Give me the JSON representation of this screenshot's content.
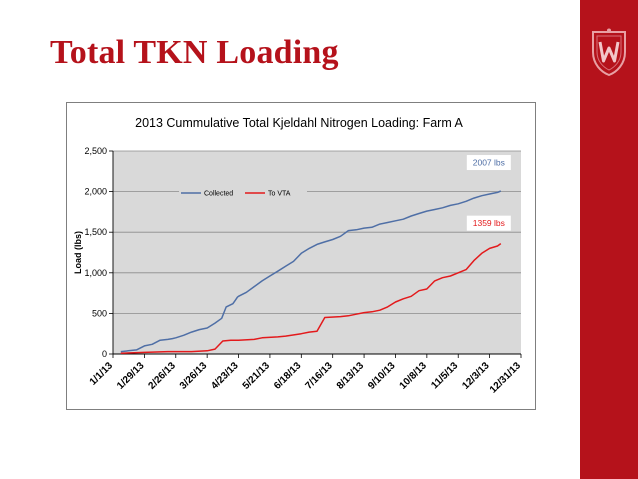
{
  "slide": {
    "title": "Total TKN Loading"
  },
  "colors": {
    "title": "#b5121b",
    "brand_bar": "#b5121b",
    "plot_background": "#d9d9d9",
    "collected": "#4f6fa6",
    "to_vta": "#e31a1c"
  },
  "icons": {
    "crest": "university-crest-icon"
  },
  "chart_data": {
    "type": "line",
    "title": "2013 Cummulative Total Kjeldahl Nitrogen Loading: Farm A",
    "ylabel": "Load (lbs)",
    "xlabel": "",
    "ylim": [
      0,
      2500
    ],
    "yticks": [
      0,
      500,
      1000,
      1500,
      2000,
      2500
    ],
    "ytick_labels": [
      "0",
      "500",
      "1,000",
      "1,500",
      "2,000",
      "2,500"
    ],
    "xlim": [
      "2013-01-01",
      "2013-12-31"
    ],
    "xticks": [
      "2013-01-01",
      "2013-01-29",
      "2013-02-26",
      "2013-03-26",
      "2013-04-23",
      "2013-05-21",
      "2013-06-18",
      "2013-07-16",
      "2013-08-13",
      "2013-09-10",
      "2013-10-08",
      "2013-11-05",
      "2013-12-03",
      "2013-12-31"
    ],
    "xtick_labels": [
      "1/1/13",
      "1/29/13",
      "2/26/13",
      "3/26/13",
      "4/23/13",
      "5/21/13",
      "6/18/13",
      "7/16/13",
      "8/13/13",
      "9/10/13",
      "10/8/13",
      "11/5/13",
      "12/3/13",
      "12/31/13"
    ],
    "grid": true,
    "legend": "upper-left inside plot",
    "series": [
      {
        "name": "Collected",
        "color": "#4f6fa6",
        "x": [
          "2013-01-08",
          "2013-01-22",
          "2013-01-29",
          "2013-02-05",
          "2013-02-12",
          "2013-02-19",
          "2013-02-23",
          "2013-02-26",
          "2013-03-05",
          "2013-03-12",
          "2013-03-19",
          "2013-03-26",
          "2013-04-02",
          "2013-04-08",
          "2013-04-12",
          "2013-04-18",
          "2013-04-20",
          "2013-04-21",
          "2013-04-22",
          "2013-04-23",
          "2013-04-30",
          "2013-05-07",
          "2013-05-14",
          "2013-05-21",
          "2013-05-28",
          "2013-06-04",
          "2013-06-11",
          "2013-06-18",
          "2013-06-25",
          "2013-07-02",
          "2013-07-09",
          "2013-07-16",
          "2013-07-23",
          "2013-07-30",
          "2013-08-06",
          "2013-08-13",
          "2013-08-20",
          "2013-08-27",
          "2013-09-03",
          "2013-09-10",
          "2013-09-17",
          "2013-09-24",
          "2013-10-01",
          "2013-10-08",
          "2013-10-15",
          "2013-10-22",
          "2013-10-29",
          "2013-11-05",
          "2013-11-12",
          "2013-11-19",
          "2013-11-26",
          "2013-12-03",
          "2013-12-10",
          "2013-12-13"
        ],
        "values": [
          30,
          50,
          100,
          120,
          170,
          180,
          190,
          200,
          230,
          270,
          300,
          320,
          380,
          440,
          580,
          620,
          660,
          680,
          700,
          710,
          760,
          830,
          900,
          960,
          1020,
          1080,
          1140,
          1240,
          1300,
          1350,
          1380,
          1410,
          1450,
          1520,
          1530,
          1550,
          1560,
          1600,
          1620,
          1640,
          1660,
          1700,
          1730,
          1760,
          1780,
          1800,
          1830,
          1850,
          1880,
          1920,
          1950,
          1970,
          1990,
          2007
        ]
      },
      {
        "name": "To VTA",
        "color": "#e31a1c",
        "x": [
          "2013-01-08",
          "2013-01-29",
          "2013-02-19",
          "2013-03-12",
          "2013-03-26",
          "2013-04-02",
          "2013-04-09",
          "2013-04-16",
          "2013-04-23",
          "2013-05-07",
          "2013-05-14",
          "2013-05-28",
          "2013-06-04",
          "2013-06-18",
          "2013-06-25",
          "2013-07-02",
          "2013-07-09",
          "2013-07-23",
          "2013-07-30",
          "2013-08-06",
          "2013-08-13",
          "2013-08-20",
          "2013-08-27",
          "2013-09-03",
          "2013-09-10",
          "2013-09-17",
          "2013-09-24",
          "2013-10-01",
          "2013-10-08",
          "2013-10-15",
          "2013-10-22",
          "2013-10-29",
          "2013-11-05",
          "2013-11-12",
          "2013-11-19",
          "2013-11-26",
          "2013-12-03",
          "2013-12-10",
          "2013-12-13"
        ],
        "values": [
          10,
          20,
          30,
          30,
          40,
          60,
          160,
          170,
          170,
          180,
          200,
          210,
          220,
          250,
          270,
          280,
          450,
          460,
          470,
          490,
          510,
          520,
          540,
          580,
          640,
          680,
          710,
          780,
          800,
          900,
          940,
          960,
          1000,
          1040,
          1150,
          1240,
          1300,
          1330,
          1359
        ]
      }
    ],
    "annotations": [
      {
        "text": "2007 lbs",
        "series": "Collected",
        "color": "#4f6fa6"
      },
      {
        "text": "1359 lbs",
        "series": "To VTA",
        "color": "#e31a1c"
      }
    ]
  }
}
